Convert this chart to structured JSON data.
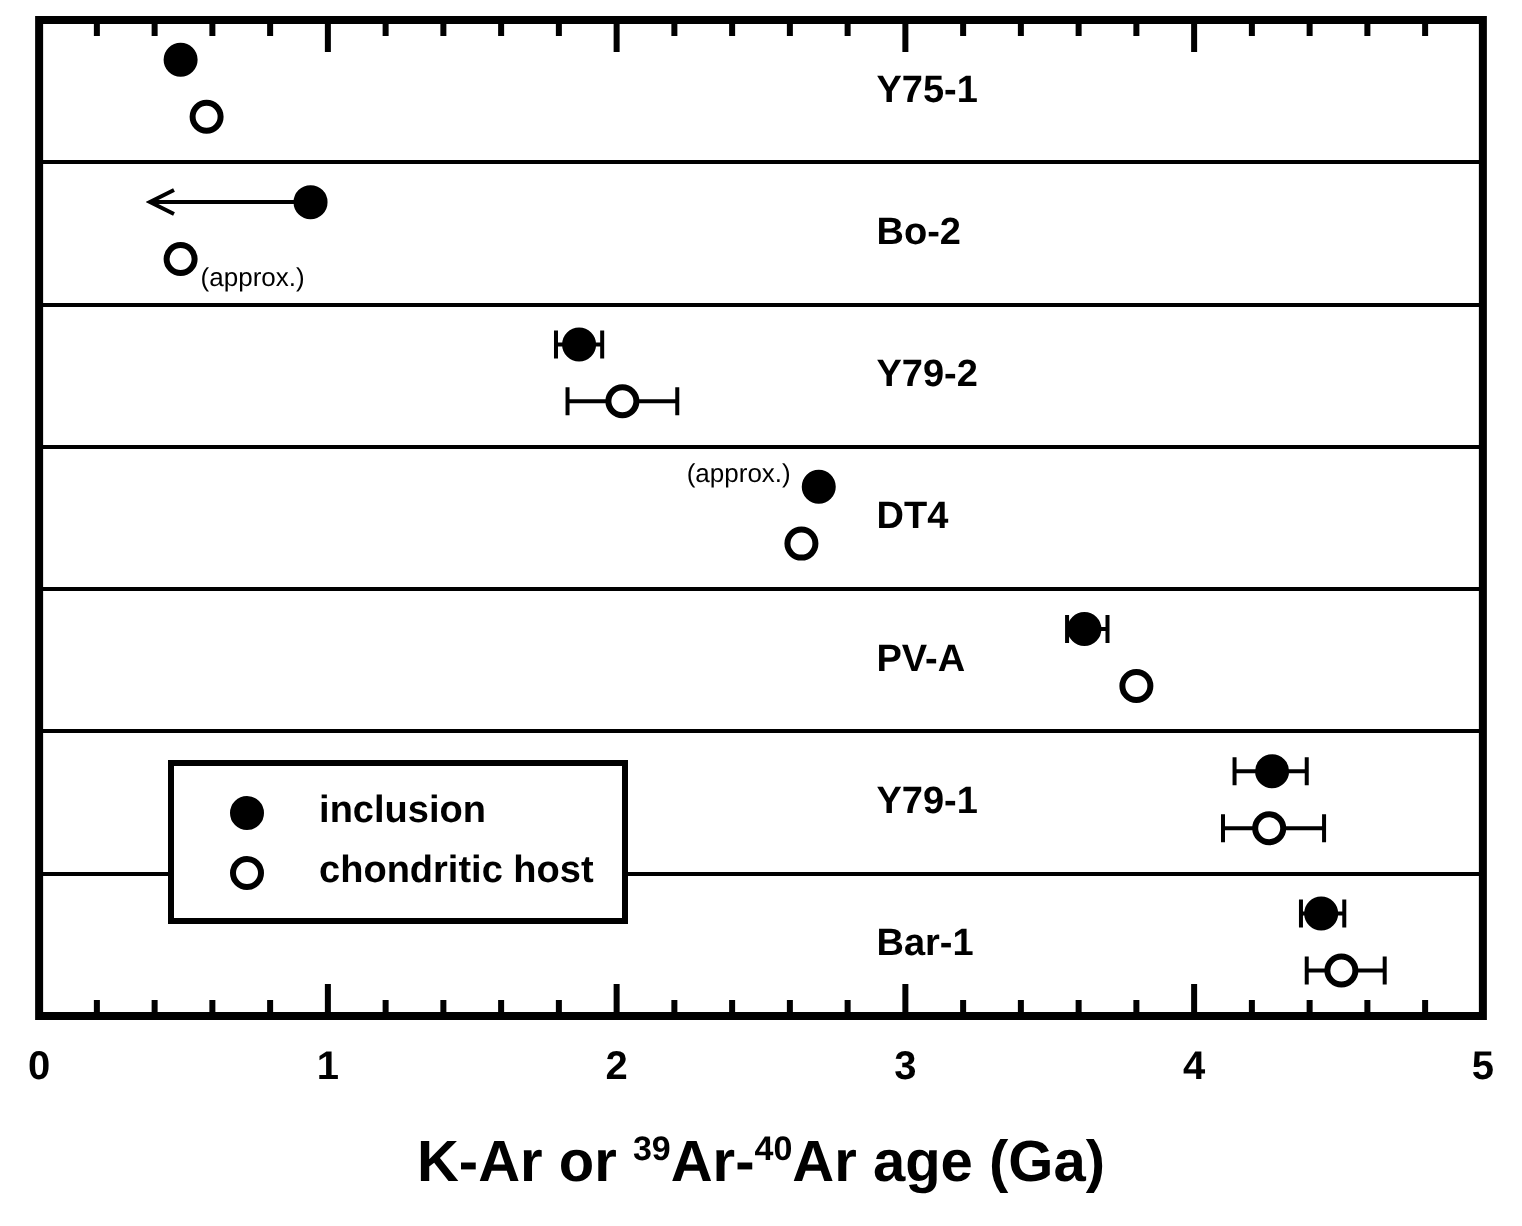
{
  "chart_data": {
    "type": "scatter",
    "orientation": "horizontal",
    "xlabel": "K-Ar  or $^{39}$Ar-$^{40}$Ar age (Ga)",
    "categories": [
      "Y75-1",
      "Bo-2",
      "Y79-2",
      "DT4",
      "PV-A",
      "Y79-1",
      "Bar-1"
    ],
    "series": [
      {
        "name": "inclusion",
        "color": "#000000",
        "values": [
          0.49,
          0.94,
          1.87,
          2.7,
          3.62,
          4.27,
          4.44
        ],
        "errors": [
          null,
          null,
          [
            1.79,
            1.95
          ],
          null,
          [
            3.56,
            3.7
          ],
          [
            4.14,
            4.39
          ],
          [
            4.37,
            4.52
          ]
        ]
      },
      {
        "name": "chondritic host",
        "color": "#ffffff",
        "values": [
          0.58,
          0.49,
          2.02,
          2.64,
          3.8,
          4.26,
          4.51
        ],
        "errors": [
          null,
          null,
          [
            1.83,
            2.21
          ],
          null,
          null,
          [
            4.1,
            4.45
          ],
          [
            4.39,
            4.66
          ]
        ]
      }
    ],
    "xlim": [
      0,
      5
    ],
    "xticks": [
      0,
      {
        "value": 0.2,
        "label": null
      },
      {
        "value": 0.4,
        "label": null
      },
      {
        "value": 0.6,
        "label": null
      },
      {
        "value": 0.8,
        "label": null
      },
      1,
      {
        "value": 1.2,
        "label": null
      },
      {
        "value": 1.4,
        "label": null
      },
      {
        "value": 1.6,
        "label": null
      },
      {
        "value": 1.8,
        "label": null
      },
      2,
      {
        "value": 2.2,
        "label": null
      },
      {
        "value": 2.4,
        "label": null
      },
      {
        "value": 2.6,
        "label": null
      },
      {
        "value": 2.8,
        "label": null
      },
      3,
      {
        "value": 3.2,
        "label": null
      },
      {
        "value": 3.4,
        "label": null
      },
      {
        "value": 3.6,
        "label": null
      },
      {
        "value": 3.8,
        "label": null
      },
      4,
      {
        "value": 4.2,
        "label": null
      },
      {
        "value": 4.4,
        "label": null
      },
      {
        "value": 4.6,
        "label": null
      },
      {
        "value": 4.8,
        "label": null
      },
      5
    ],
    "annotations": [
      "(approx.)",
      "(approx.)"
    ],
    "grid": "y",
    "legend": "bottom left",
    "marker": "circle"
  }
}
